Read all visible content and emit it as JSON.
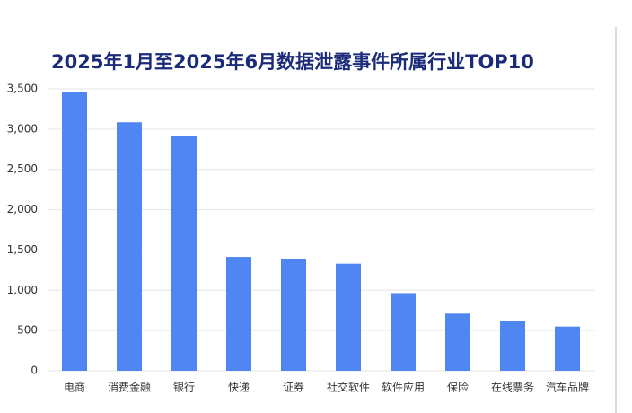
{
  "chart_data": {
    "type": "bar",
    "title": "2025年1月至2025年6月数据泄露事件所属行业TOP10",
    "categories": [
      "电商",
      "消费金融",
      "银行",
      "快递",
      "证券",
      "社交软件",
      "软件应用",
      "保险",
      "在线票务",
      "汽车品牌"
    ],
    "values": [
      3460,
      3085,
      2920,
      1415,
      1390,
      1330,
      965,
      710,
      615,
      550
    ],
    "color": "#4f86f2",
    "ylim": [
      0,
      3500
    ],
    "yticks": [
      0,
      500,
      {
        "value": 1000,
        "label": "1,000"
      },
      {
        "value": 1500,
        "label": "1,500"
      },
      {
        "value": 2000,
        "label": "2,000"
      },
      {
        "value": 2500,
        "label": "2,500"
      },
      {
        "value": 3000,
        "label": "3,000"
      },
      {
        "value": 3500,
        "label": "3,500"
      }
    ],
    "grid": true
  }
}
